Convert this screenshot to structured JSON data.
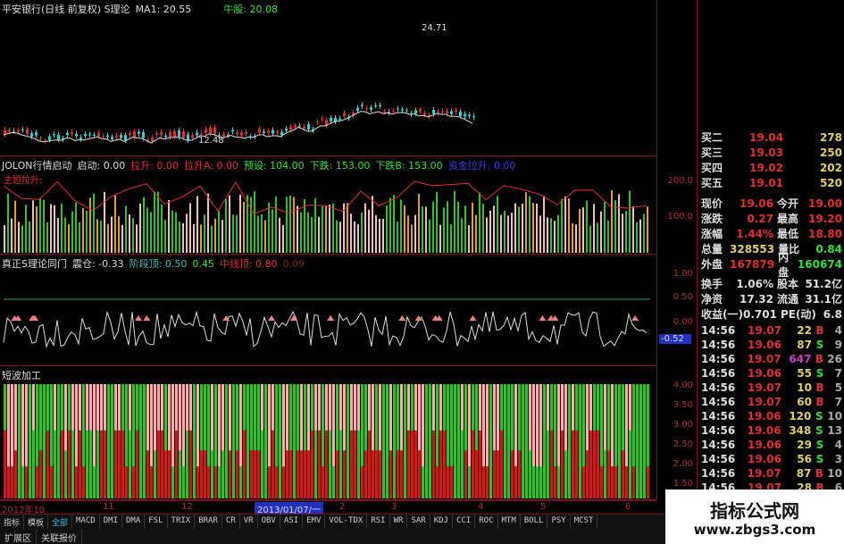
{
  "main": {
    "title": "平安银行(日线 前复权) S理论",
    "ma1": "MA1: 20.55",
    "niuxian": "牛股: 20.08",
    "high_label": "24.71",
    "low_label": "12.48"
  },
  "panel2": {
    "name": "JOLON行情启动",
    "items": [
      {
        "t": "启动: 0.00",
        "c": "#ddd"
      },
      {
        "t": "拉升: 0.00",
        "c": "#e03030"
      },
      {
        "t": "拉升A: 0.00",
        "c": "#e03030"
      },
      {
        "t": "预设: 104.00",
        "c": "#30e030"
      },
      {
        "t": "下跌: 153.00",
        "c": "#30e030"
      },
      {
        "t": "下跌B: 153.00",
        "c": "#30e030"
      },
      {
        "t": "资金拉升: 0.00",
        "c": "#3040e0"
      }
    ],
    "sub": "主题拉升:",
    "axis": [
      "200.0",
      "100.0"
    ]
  },
  "panel3": {
    "name": "真正S理论同门",
    "items": [
      {
        "t": "震仓: -0.33",
        "c": "#ddd"
      },
      {
        "t": "阶段顶: 0.50",
        "c": "#30c0c0"
      },
      {
        "t": "0.45",
        "c": "#30e030"
      },
      {
        "t": "中线顶: 0.80",
        "c": "#e03030"
      },
      {
        "t": "0.09",
        "c": "#802020"
      }
    ],
    "axis": [
      "1.00",
      "0.50",
      "0.00"
    ],
    "current": "-0.52"
  },
  "panel4": {
    "name": "短波加工",
    "axis": [
      "4.00",
      "3.50",
      "3.00",
      "2.50",
      "2.00",
      "1.50"
    ]
  },
  "timeline": [
    "2012年10",
    "11",
    "12",
    "2013/01/07/一",
    "2",
    "3",
    "4",
    "5",
    "6"
  ],
  "quote": {
    "bids": [
      {
        "k": "买二",
        "p": "19.04",
        "v": "278"
      },
      {
        "k": "买三",
        "p": "19.03",
        "v": "250"
      },
      {
        "k": "买四",
        "p": "19.02",
        "v": "202"
      },
      {
        "k": "买五",
        "p": "19.01",
        "v": "520"
      }
    ],
    "stats": [
      {
        "k1": "现价",
        "v1": "19.06",
        "c1": "red",
        "k2": "今开",
        "v2": "19.00",
        "c2": "red"
      },
      {
        "k1": "涨跌",
        "v1": "0.27",
        "c1": "red",
        "k2": "最高",
        "v2": "19.20",
        "c2": "red"
      },
      {
        "k1": "涨幅",
        "v1": "1.44%",
        "c1": "red",
        "k2": "最低",
        "v2": "18.80",
        "c2": "red"
      },
      {
        "k1": "总量",
        "v1": "328553",
        "c1": "yel",
        "k2": "量比",
        "v2": "0.84",
        "c2": "grn"
      },
      {
        "k1": "外盘",
        "v1": "167879",
        "c1": "red",
        "k2": "内盘",
        "v2": "160674",
        "c2": "grn"
      },
      {
        "k1": "换手",
        "v1": "1.06%",
        "c1": "wht",
        "k2": "股本",
        "v2": "51.2亿",
        "c2": "wht"
      },
      {
        "k1": "净资",
        "v1": "17.32",
        "c1": "wht",
        "k2": "流通",
        "v2": "31.1亿",
        "c2": "wht"
      },
      {
        "k1": "收益(一)",
        "v1": "0.701",
        "c1": "wht",
        "k2": "PE(动)",
        "v2": "6.8",
        "c2": "wht"
      }
    ],
    "ticks": [
      [
        "14:56",
        "19.07",
        "22",
        "B",
        "4"
      ],
      [
        "14:56",
        "19.06",
        "87",
        "S",
        "9"
      ],
      [
        "14:56",
        "19.07",
        "647",
        "B",
        "26"
      ],
      [
        "14:56",
        "19.06",
        "55",
        "S",
        "7"
      ],
      [
        "14:56",
        "19.07",
        "10",
        "B",
        "5"
      ],
      [
        "14:56",
        "19.07",
        "60",
        "B",
        "7"
      ],
      [
        "14:56",
        "19.06",
        "120",
        "S",
        "10"
      ],
      [
        "14:56",
        "19.06",
        "348",
        "S",
        "13"
      ],
      [
        "14:56",
        "19.06",
        "29",
        "S",
        "4"
      ],
      [
        "14:56",
        "19.06",
        "56",
        "S",
        "3"
      ],
      [
        "14:56",
        "19.07",
        "87",
        "B",
        "10"
      ],
      [
        "14:56",
        "19.07",
        "28",
        "B",
        "6"
      ]
    ]
  },
  "tabs": [
    "指标",
    "模板",
    "全部",
    "MACD",
    "DMI",
    "DMA",
    "FSL",
    "TRIX",
    "BRAR",
    "CR",
    "VR",
    "OBV",
    "ASI",
    "EMV",
    "VOL-TDX",
    "RSI",
    "WR",
    "SAR",
    "KDJ",
    "CCI",
    "ROC",
    "MTM",
    "BOLL",
    "PSY",
    "MCST"
  ],
  "tabs2": [
    "扩展区",
    "关联报价"
  ],
  "watermark": {
    "name": "指标公式网",
    "url": "www.zbgs3.com"
  }
}
